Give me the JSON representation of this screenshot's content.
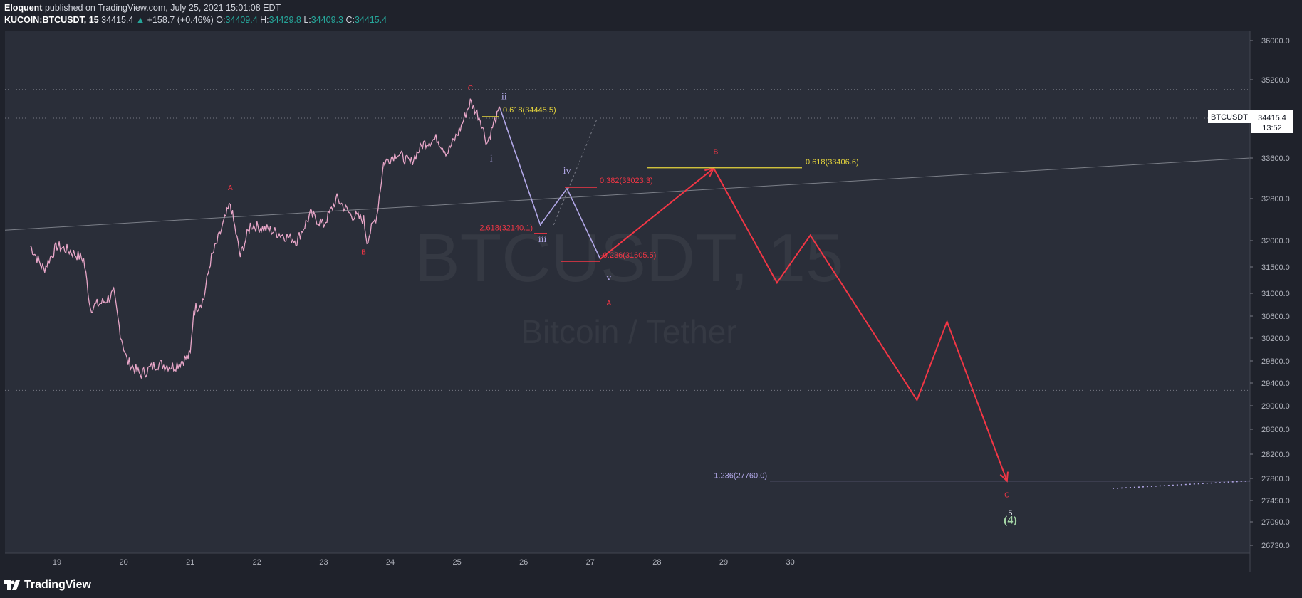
{
  "header": {
    "author": "Eloquent",
    "published_text": "published on TradingView.com, July 25, 2021 15:01:08 EDT",
    "symbol": "KUCOIN:BTCUSDT, 15",
    "last": "34415.4",
    "change": "+158.7 (+0.46%)",
    "o_label": "O:",
    "o": "34409.4",
    "h_label": "H:",
    "h": "34429.8",
    "l_label": "L:",
    "l": "34409.3",
    "c_label": "C:",
    "c": "34415.4"
  },
  "watermark": {
    "symbol": "BTCUSDT, 15",
    "name": "Bitcoin / Tether"
  },
  "price_tag": {
    "label": "BTCUSDT",
    "price": "34415.4",
    "countdown": "13:52"
  },
  "footer": {
    "logo_text": "TradingView"
  },
  "colors": {
    "bg": "#1f222b",
    "wave_red": "#f23645",
    "wave_purple": "#b2a8e8",
    "fib_yellow": "#e6d53c",
    "up": "#26a69a"
  },
  "chart_data": {
    "type": "line",
    "title": "",
    "xlabel": "",
    "ylabel": "",
    "x_ticks": [
      "19",
      "20",
      "21",
      "22",
      "23",
      "24",
      "25",
      "26",
      "27",
      "28",
      "29",
      "30"
    ],
    "y_ticks": [
      {
        "value": 36000,
        "label": "36000.0"
      },
      {
        "value": 35200,
        "label": "35200.0"
      },
      {
        "value": 33600,
        "label": "33600.0"
      },
      {
        "value": 32800,
        "label": "32800.0"
      },
      {
        "value": 32000,
        "label": "32000.0"
      },
      {
        "value": 31500,
        "label": "31500.0"
      },
      {
        "value": 31000,
        "label": "31000.0"
      },
      {
        "value": 30600,
        "label": "30600.0"
      },
      {
        "value": 30200,
        "label": "30200.0"
      },
      {
        "value": 29800,
        "label": "29800.0"
      },
      {
        "value": 29400,
        "label": "29400.0"
      },
      {
        "value": 29000,
        "label": "29000.0"
      },
      {
        "value": 28600,
        "label": "28600.0"
      },
      {
        "value": 28200,
        "label": "28200.0"
      },
      {
        "value": 27800,
        "label": "27800.0"
      },
      {
        "value": 27450,
        "label": "27450.0"
      },
      {
        "value": 27090,
        "label": "27090.0"
      },
      {
        "value": 26730,
        "label": "26730.0"
      }
    ],
    "series": [
      {
        "name": "BTCUSDT price",
        "points": [
          [
            18.6,
            31900
          ],
          [
            18.8,
            31450
          ],
          [
            19.0,
            31900
          ],
          [
            19.2,
            31800
          ],
          [
            19.4,
            31650
          ],
          [
            19.5,
            30750
          ],
          [
            19.7,
            30850
          ],
          [
            19.85,
            31000
          ],
          [
            19.95,
            30300
          ],
          [
            20.05,
            29800
          ],
          [
            20.25,
            29550
          ],
          [
            20.5,
            29750
          ],
          [
            20.75,
            29700
          ],
          [
            21.0,
            29900
          ],
          [
            21.05,
            30700
          ],
          [
            21.2,
            30900
          ],
          [
            21.3,
            31600
          ],
          [
            21.45,
            32150
          ],
          [
            21.6,
            32700
          ],
          [
            21.75,
            31700
          ],
          [
            21.9,
            32300
          ],
          [
            22.2,
            32200
          ],
          [
            22.4,
            32100
          ],
          [
            22.6,
            32000
          ],
          [
            22.8,
            32500
          ],
          [
            23.0,
            32300
          ],
          [
            23.2,
            32800
          ],
          [
            23.4,
            32500
          ],
          [
            23.6,
            32400
          ],
          [
            23.65,
            32000
          ],
          [
            23.8,
            32500
          ],
          [
            23.9,
            33500
          ],
          [
            24.1,
            33700
          ],
          [
            24.3,
            33500
          ],
          [
            24.5,
            33900
          ],
          [
            24.7,
            34000
          ],
          [
            24.85,
            33700
          ],
          [
            25.05,
            34200
          ],
          [
            25.2,
            34750
          ],
          [
            25.35,
            34400
          ],
          [
            25.45,
            33900
          ],
          [
            25.55,
            34300
          ],
          [
            25.65,
            34600
          ]
        ]
      },
      {
        "name": "wave i-v",
        "points": [
          [
            25.65,
            34600
          ],
          [
            26.25,
            32300
          ],
          [
            26.65,
            33000
          ],
          [
            27.15,
            31650
          ]
        ]
      },
      {
        "name": "wave A-B-C",
        "points": [
          [
            27.15,
            31650
          ],
          [
            28.85,
            33400
          ],
          [
            29.8,
            31200
          ],
          [
            30.3,
            32100
          ],
          [
            31.9,
            29100
          ],
          [
            32.35,
            30500
          ],
          [
            33.25,
            27760
          ]
        ]
      }
    ],
    "fib_levels": [
      {
        "label": "0.618(34445.5)",
        "value": 34445.5
      },
      {
        "label": "0.382(33023.3)",
        "value": 33023.3
      },
      {
        "label": "2.618(32140.1)",
        "value": 32140.1
      },
      {
        "label": "-0.236(31605.5)",
        "value": 31605.5
      },
      {
        "label": "0.618(33406.6)",
        "value": 33406.6
      },
      {
        "label": "1.236(27760.0)",
        "value": 27760.0
      }
    ],
    "wave_labels": [
      {
        "text": "A",
        "x": 21.6,
        "y": 32800
      },
      {
        "text": "B",
        "x": 23.6,
        "y": 31950
      },
      {
        "text": "C",
        "x": 25.2,
        "y": 34750
      },
      {
        "text": "ii",
        "x": 25.6,
        "y": 34600
      },
      {
        "text": "i",
        "x": 25.45,
        "y": 33900
      },
      {
        "text": "iv",
        "x": 26.65,
        "y": 33050
      },
      {
        "text": "iii",
        "x": 26.25,
        "y": 32300
      },
      {
        "text": "v",
        "x": 27.15,
        "y": 31650
      },
      {
        "text": "A",
        "x": 27.15,
        "y": 31650
      },
      {
        "text": "B",
        "x": 28.85,
        "y": 33400
      },
      {
        "text": "C",
        "x": 33.25,
        "y": 27760
      },
      {
        "text": "5",
        "x": 33.3,
        "y": 27450
      },
      {
        "text": "(4)",
        "x": 33.3,
        "y": 27000
      }
    ],
    "horizontal_levels": [
      35000,
      34415.4,
      29270
    ],
    "grid": false,
    "legend": "none"
  }
}
